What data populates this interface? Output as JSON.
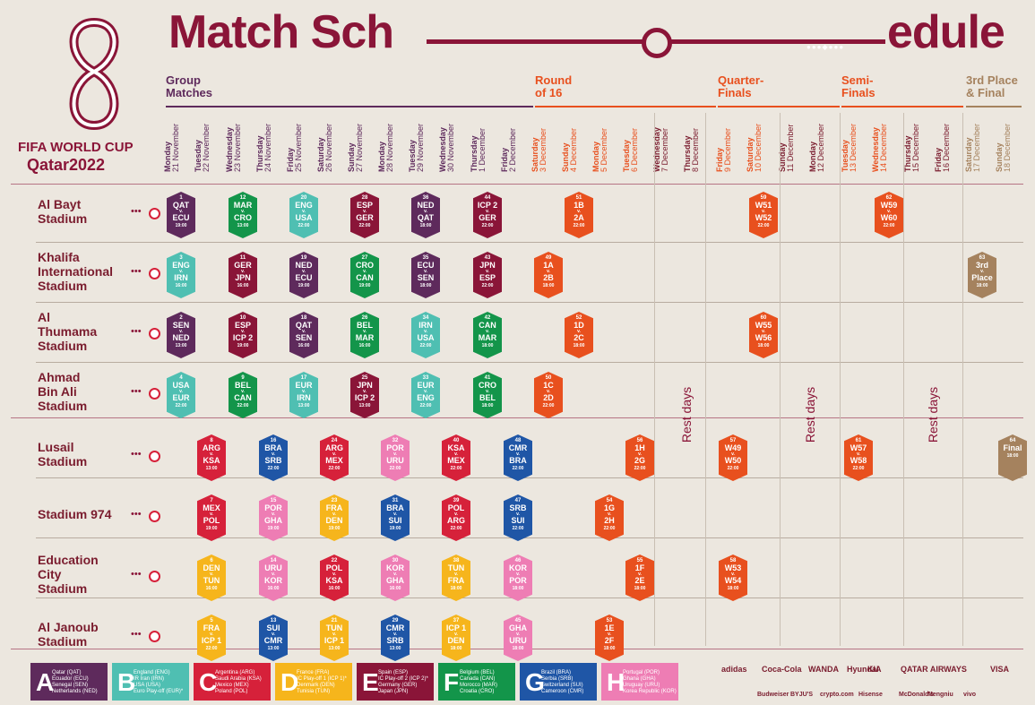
{
  "title": {
    "part1": "Match Sch",
    "part2": "edule"
  },
  "brand": {
    "fwc": "FIFA WORLD CUP",
    "host": "Qatar2022"
  },
  "stages": [
    {
      "id": "group",
      "label": "Group\nMatches",
      "color": "#5E2A5C"
    },
    {
      "id": "r16",
      "label": "Round\nof 16",
      "color": "#E8501E"
    },
    {
      "id": "qf",
      "label": "Quarter-\nFinals",
      "color": "#E8501E"
    },
    {
      "id": "sf",
      "label": "Semi-\nFinals",
      "color": "#E8501E"
    },
    {
      "id": "final",
      "label": "3rd Place\n& Final",
      "color": "#A5825E"
    }
  ],
  "days": [
    {
      "day": "Monday",
      "date": "21 November"
    },
    {
      "day": "Tuesday",
      "date": "22 November"
    },
    {
      "day": "Wednesday",
      "date": "23 November"
    },
    {
      "day": "Thursday",
      "date": "24 November"
    },
    {
      "day": "Friday",
      "date": "25 November"
    },
    {
      "day": "Saturday",
      "date": "26 November"
    },
    {
      "day": "Sunday",
      "date": "27 November"
    },
    {
      "day": "Monday",
      "date": "28 November"
    },
    {
      "day": "Tuesday",
      "date": "29 November"
    },
    {
      "day": "Wednesday",
      "date": "30 November"
    },
    {
      "day": "Thursday",
      "date": "1 December"
    },
    {
      "day": "Friday",
      "date": "2 December"
    },
    {
      "day": "Saturday",
      "date": "3 December"
    },
    {
      "day": "Sunday",
      "date": "4 December"
    },
    {
      "day": "Monday",
      "date": "5 December"
    },
    {
      "day": "Tuesday",
      "date": "6 December"
    },
    {
      "day": "Wednesday",
      "date": "7 December"
    },
    {
      "day": "Thursday",
      "date": "8 December"
    },
    {
      "day": "Friday",
      "date": "9 December"
    },
    {
      "day": "Saturday",
      "date": "10 December"
    },
    {
      "day": "Sunday",
      "date": "11 December"
    },
    {
      "day": "Monday",
      "date": "12 December"
    },
    {
      "day": "Tuesday",
      "date": "13 December"
    },
    {
      "day": "Wednesday",
      "date": "14 December"
    },
    {
      "day": "Thursday",
      "date": "15 December"
    },
    {
      "day": "Friday",
      "date": "16 December"
    },
    {
      "day": "Saturday",
      "date": "17 December"
    },
    {
      "day": "Sunday",
      "date": "18 December"
    }
  ],
  "stadiums": [
    "Al Bayt\nStadium",
    "Khalifa\nInternational\nStadium",
    "Al\nThumama\nStadium",
    "Ahmad\nBin Ali\nStadium",
    "Lusail\nStadium",
    "Stadium 974",
    "Education\nCity\nStadium",
    "Al Janoub\nStadium"
  ],
  "rest_label": "Rest days",
  "group_colors": {
    "A": "#5E2A5C",
    "B": "#4FBFB2",
    "C": "#D6213A",
    "D": "#F6B51C",
    "E": "#8A1538",
    "F": "#13954A",
    "G": "#1F56A6",
    "H": "#EE7DB4",
    "KO": "#E8501E",
    "FN": "#A5825E"
  },
  "matches": [
    {
      "n": "1",
      "a": "QAT",
      "b": "ECU",
      "k": "19:00",
      "g": "A",
      "s": 0,
      "d": 0
    },
    {
      "n": "12",
      "a": "MAR",
      "b": "CRO",
      "k": "13:00",
      "g": "F",
      "s": 0,
      "d": 2
    },
    {
      "n": "20",
      "a": "ENG",
      "b": "USA",
      "k": "22:00",
      "g": "B",
      "s": 0,
      "d": 4
    },
    {
      "n": "28",
      "a": "ESP",
      "b": "GER",
      "k": "22:00",
      "g": "E",
      "s": 0,
      "d": 6
    },
    {
      "n": "36",
      "a": "NED",
      "b": "QAT",
      "k": "18:00",
      "g": "A",
      "s": 0,
      "d": 8
    },
    {
      "n": "44",
      "a": "ICP 2",
      "b": "GER",
      "k": "22:00",
      "g": "E",
      "s": 0,
      "d": 10
    },
    {
      "n": "51",
      "a": "1B",
      "b": "2A",
      "k": "22:00",
      "g": "KO",
      "s": 0,
      "d": 13
    },
    {
      "n": "59",
      "a": "W51",
      "b": "W52",
      "k": "22:00",
      "g": "KO",
      "s": 0,
      "d": 19
    },
    {
      "n": "62",
      "a": "W59",
      "b": "W60",
      "k": "22:00",
      "g": "KO",
      "s": 0,
      "d": 23
    },
    {
      "n": "3",
      "a": "ENG",
      "b": "IRN",
      "k": "16:00",
      "g": "B",
      "s": 1,
      "d": 0
    },
    {
      "n": "11",
      "a": "GER",
      "b": "JPN",
      "k": "16:00",
      "g": "E",
      "s": 1,
      "d": 2
    },
    {
      "n": "19",
      "a": "NED",
      "b": "ECU",
      "k": "19:00",
      "g": "A",
      "s": 1,
      "d": 4
    },
    {
      "n": "27",
      "a": "CRO",
      "b": "CAN",
      "k": "19:00",
      "g": "F",
      "s": 1,
      "d": 6
    },
    {
      "n": "35",
      "a": "ECU",
      "b": "SEN",
      "k": "18:00",
      "g": "A",
      "s": 1,
      "d": 8
    },
    {
      "n": "43",
      "a": "JPN",
      "b": "ESP",
      "k": "22:00",
      "g": "E",
      "s": 1,
      "d": 10
    },
    {
      "n": "49",
      "a": "1A",
      "b": "2B",
      "k": "18:00",
      "g": "KO",
      "s": 1,
      "d": 12
    },
    {
      "n": "63",
      "a": "3rd",
      "b": "Place",
      "k": "18:00",
      "g": "FN",
      "s": 1,
      "d": 26
    },
    {
      "n": "2",
      "a": "SEN",
      "b": "NED",
      "k": "13:00",
      "g": "A",
      "s": 2,
      "d": 0
    },
    {
      "n": "10",
      "a": "ESP",
      "b": "ICP 2",
      "k": "19:00",
      "g": "E",
      "s": 2,
      "d": 2
    },
    {
      "n": "18",
      "a": "QAT",
      "b": "SEN",
      "k": "16:00",
      "g": "A",
      "s": 2,
      "d": 4
    },
    {
      "n": "26",
      "a": "BEL",
      "b": "MAR",
      "k": "16:00",
      "g": "F",
      "s": 2,
      "d": 6
    },
    {
      "n": "34",
      "a": "IRN",
      "b": "USA",
      "k": "22:00",
      "g": "B",
      "s": 2,
      "d": 8
    },
    {
      "n": "42",
      "a": "CAN",
      "b": "MAR",
      "k": "18:00",
      "g": "F",
      "s": 2,
      "d": 10
    },
    {
      "n": "52",
      "a": "1D",
      "b": "2C",
      "k": "18:00",
      "g": "KO",
      "s": 2,
      "d": 13
    },
    {
      "n": "60",
      "a": "W55",
      "b": "W56",
      "k": "18:00",
      "g": "KO",
      "s": 2,
      "d": 19
    },
    {
      "n": "4",
      "a": "USA",
      "b": "EUR",
      "k": "22:00",
      "g": "B",
      "s": 3,
      "d": 0
    },
    {
      "n": "9",
      "a": "BEL",
      "b": "CAN",
      "k": "22:00",
      "g": "F",
      "s": 3,
      "d": 2
    },
    {
      "n": "17",
      "a": "EUR",
      "b": "IRN",
      "k": "13:00",
      "g": "B",
      "s": 3,
      "d": 4
    },
    {
      "n": "25",
      "a": "JPN",
      "b": "ICP 2",
      "k": "13:00",
      "g": "E",
      "s": 3,
      "d": 6
    },
    {
      "n": "33",
      "a": "EUR",
      "b": "ENG",
      "k": "22:00",
      "g": "B",
      "s": 3,
      "d": 8
    },
    {
      "n": "41",
      "a": "CRO",
      "b": "BEL",
      "k": "18:00",
      "g": "F",
      "s": 3,
      "d": 10
    },
    {
      "n": "50",
      "a": "1C",
      "b": "2D",
      "k": "22:00",
      "g": "KO",
      "s": 3,
      "d": 12
    },
    {
      "n": "8",
      "a": "ARG",
      "b": "KSA",
      "k": "13:00",
      "g": "C",
      "s": 4,
      "d": 1
    },
    {
      "n": "16",
      "a": "BRA",
      "b": "SRB",
      "k": "22:00",
      "g": "G",
      "s": 4,
      "d": 3
    },
    {
      "n": "24",
      "a": "ARG",
      "b": "MEX",
      "k": "22:00",
      "g": "C",
      "s": 4,
      "d": 5
    },
    {
      "n": "32",
      "a": "POR",
      "b": "URU",
      "k": "22:00",
      "g": "H",
      "s": 4,
      "d": 7
    },
    {
      "n": "40",
      "a": "KSA",
      "b": "MEX",
      "k": "22:00",
      "g": "C",
      "s": 4,
      "d": 9
    },
    {
      "n": "48",
      "a": "CMR",
      "b": "BRA",
      "k": "22:00",
      "g": "G",
      "s": 4,
      "d": 11
    },
    {
      "n": "56",
      "a": "1H",
      "b": "2G",
      "k": "22:00",
      "g": "KO",
      "s": 4,
      "d": 15
    },
    {
      "n": "57",
      "a": "W49",
      "b": "W50",
      "k": "22:00",
      "g": "KO",
      "s": 4,
      "d": 18
    },
    {
      "n": "61",
      "a": "W57",
      "b": "W58",
      "k": "22:00",
      "g": "KO",
      "s": 4,
      "d": 22
    },
    {
      "n": "64",
      "a": "",
      "b": "Final",
      "k": "18:00",
      "g": "FN",
      "s": 4,
      "d": 27
    },
    {
      "n": "7",
      "a": "MEX",
      "b": "POL",
      "k": "19:00",
      "g": "C",
      "s": 5,
      "d": 1
    },
    {
      "n": "15",
      "a": "POR",
      "b": "GHA",
      "k": "19:00",
      "g": "H",
      "s": 5,
      "d": 3
    },
    {
      "n": "23",
      "a": "FRA",
      "b": "DEN",
      "k": "19:00",
      "g": "D",
      "s": 5,
      "d": 5
    },
    {
      "n": "31",
      "a": "BRA",
      "b": "SUI",
      "k": "19:00",
      "g": "G",
      "s": 5,
      "d": 7
    },
    {
      "n": "39",
      "a": "POL",
      "b": "ARG",
      "k": "22:00",
      "g": "C",
      "s": 5,
      "d": 9
    },
    {
      "n": "47",
      "a": "SRB",
      "b": "SUI",
      "k": "22:00",
      "g": "G",
      "s": 5,
      "d": 11
    },
    {
      "n": "54",
      "a": "1G",
      "b": "2H",
      "k": "22:00",
      "g": "KO",
      "s": 5,
      "d": 14
    },
    {
      "n": "6",
      "a": "DEN",
      "b": "TUN",
      "k": "16:00",
      "g": "D",
      "s": 6,
      "d": 1
    },
    {
      "n": "14",
      "a": "URU",
      "b": "KOR",
      "k": "16:00",
      "g": "H",
      "s": 6,
      "d": 3
    },
    {
      "n": "22",
      "a": "POL",
      "b": "KSA",
      "k": "16:00",
      "g": "C",
      "s": 6,
      "d": 5
    },
    {
      "n": "30",
      "a": "KOR",
      "b": "GHA",
      "k": "16:00",
      "g": "H",
      "s": 6,
      "d": 7
    },
    {
      "n": "38",
      "a": "TUN",
      "b": "FRA",
      "k": "18:00",
      "g": "D",
      "s": 6,
      "d": 9
    },
    {
      "n": "46",
      "a": "KOR",
      "b": "POR",
      "k": "18:00",
      "g": "H",
      "s": 6,
      "d": 11
    },
    {
      "n": "55",
      "a": "1F",
      "b": "2E",
      "k": "18:00",
      "g": "KO",
      "s": 6,
      "d": 15
    },
    {
      "n": "58",
      "a": "W53",
      "b": "W54",
      "k": "18:00",
      "g": "KO",
      "s": 6,
      "d": 18
    },
    {
      "n": "5",
      "a": "FRA",
      "b": "ICP 1",
      "k": "22:00",
      "g": "D",
      "s": 7,
      "d": 1
    },
    {
      "n": "13",
      "a": "SUI",
      "b": "CMR",
      "k": "13:00",
      "g": "G",
      "s": 7,
      "d": 3
    },
    {
      "n": "21",
      "a": "TUN",
      "b": "ICP 1",
      "k": "13:00",
      "g": "D",
      "s": 7,
      "d": 5
    },
    {
      "n": "29",
      "a": "CMR",
      "b": "SRB",
      "k": "13:00",
      "g": "G",
      "s": 7,
      "d": 7
    },
    {
      "n": "37",
      "a": "ICP 1",
      "b": "DEN",
      "k": "18:00",
      "g": "D",
      "s": 7,
      "d": 9
    },
    {
      "n": "45",
      "a": "GHA",
      "b": "URU",
      "k": "18:00",
      "g": "H",
      "s": 7,
      "d": 11
    },
    {
      "n": "53",
      "a": "1E",
      "b": "2F",
      "k": "18:00",
      "g": "KO",
      "s": 7,
      "d": 14
    }
  ],
  "legend": [
    {
      "g": "A",
      "color": "#5E2A5C",
      "items": [
        "Qatar (QAT)",
        "Ecuador (ECU)",
        "Senegal (SEN)",
        "Netherlands (NED)"
      ]
    },
    {
      "g": "B",
      "color": "#4FBFB2",
      "items": [
        "England (ENG)",
        "IR Iran (IRN)",
        "USA (USA)",
        "Euro Play-off (EUR)*"
      ]
    },
    {
      "g": "C",
      "color": "#D6213A",
      "items": [
        "Argentina (ARG)",
        "Saudi Arabia (KSA)",
        "Mexico (MEX)",
        "Poland (POL)"
      ]
    },
    {
      "g": "D",
      "color": "#F6B51C",
      "items": [
        "France (FRA)",
        "IC Play-off 1 (ICP 1)*",
        "Denmark (DEN)",
        "Tunisia (TUN)"
      ]
    },
    {
      "g": "E",
      "color": "#8A1538",
      "items": [
        "Spain (ESP)",
        "IC Play-off 2 (ICP 2)*",
        "Germany (GER)",
        "Japan (JPN)"
      ]
    },
    {
      "g": "F",
      "color": "#13954A",
      "items": [
        "Belgium (BEL)",
        "Canada (CAN)",
        "Morocco (MAR)",
        "Croatia (CRO)"
      ]
    },
    {
      "g": "G",
      "color": "#1F56A6",
      "items": [
        "Brazil (BRA)",
        "Serbia (SRB)",
        "Switzerland (SUI)",
        "Cameroon (CMR)"
      ]
    },
    {
      "g": "H",
      "color": "#EE7DB4",
      "items": [
        "Portugal (POR)",
        "Ghana (GHA)",
        "Uruguay (URU)",
        "Korea Republic (KOR)"
      ]
    }
  ],
  "sponsors_top": [
    "adidas",
    "Coca-Cola",
    "WANDA",
    "Hyundai",
    "KIA",
    "QATAR AIRWAYS",
    "VISA"
  ],
  "sponsors_bottom": [
    "Budweiser",
    "BYJU'S",
    "crypto.com",
    "Hisense",
    "McDonald's",
    "Mengniu",
    "vivo"
  ]
}
